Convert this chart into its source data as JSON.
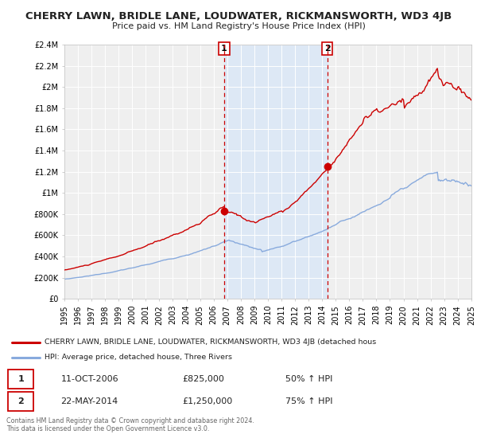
{
  "title": "CHERRY LAWN, BRIDLE LANE, LOUDWATER, RICKMANSWORTH, WD3 4JB",
  "subtitle": "Price paid vs. HM Land Registry's House Price Index (HPI)",
  "title_fontsize": 9.5,
  "subtitle_fontsize": 8,
  "background_color": "#ffffff",
  "plot_bg_color": "#efefef",
  "grid_color": "#ffffff",
  "red_line_color": "#cc0000",
  "blue_line_color": "#88aadd",
  "shaded_region_color": "#dde8f5",
  "xmin": 1995,
  "xmax": 2025,
  "ymin": 0,
  "ymax": 2400000,
  "yticks": [
    0,
    200000,
    400000,
    600000,
    800000,
    1000000,
    1200000,
    1400000,
    1600000,
    1800000,
    2000000,
    2200000,
    2400000
  ],
  "ytick_labels": [
    "£0",
    "£200K",
    "£400K",
    "£600K",
    "£800K",
    "£1M",
    "£1.2M",
    "£1.4M",
    "£1.6M",
    "£1.8M",
    "£2M",
    "£2.2M",
    "£2.4M"
  ],
  "xticks": [
    1995,
    1996,
    1997,
    1998,
    1999,
    2000,
    2001,
    2002,
    2003,
    2004,
    2005,
    2006,
    2007,
    2008,
    2009,
    2010,
    2011,
    2012,
    2013,
    2014,
    2015,
    2016,
    2017,
    2018,
    2019,
    2020,
    2021,
    2022,
    2023,
    2024,
    2025
  ],
  "marker1_x": 2006.78,
  "marker1_y": 825000,
  "marker2_x": 2014.38,
  "marker2_y": 1250000,
  "sale1_date": "11-OCT-2006",
  "sale1_price": "£825,000",
  "sale1_hpi": "50% ↑ HPI",
  "sale2_date": "22-MAY-2014",
  "sale2_price": "£1,250,000",
  "sale2_hpi": "75% ↑ HPI",
  "legend_label_red": "CHERRY LAWN, BRIDLE LANE, LOUDWATER, RICKMANSWORTH, WD3 4JB (detached hous",
  "legend_label_blue": "HPI: Average price, detached house, Three Rivers",
  "footer_text": "Contains HM Land Registry data © Crown copyright and database right 2024.\nThis data is licensed under the Open Government Licence v3.0."
}
